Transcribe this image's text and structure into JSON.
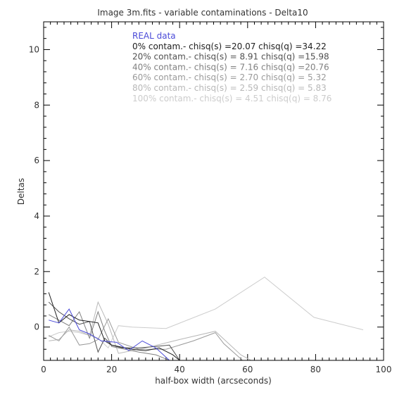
{
  "chart_data": {
    "type": "line",
    "title": "Image 3m.fits - variable contaminations - Delta10",
    "xlabel": "half-box width (arcseconds)",
    "ylabel": "Deltas",
    "xlim": [
      0,
      100
    ],
    "ylim": [
      -1.2,
      11
    ],
    "xticks": [
      0,
      20,
      40,
      60,
      80,
      100
    ],
    "yticks": [
      0,
      2,
      4,
      6,
      8,
      10
    ],
    "x_minor_step": 2,
    "y_minor_step": 0.4,
    "grid": false,
    "legend_position": "top",
    "series": [
      {
        "name": "REAL data",
        "legend_text": "REAL data",
        "color": "#4a4ad8",
        "x": [
          1.5,
          4.5,
          7.5,
          10.5,
          13.5,
          17,
          21.5,
          25,
          29,
          33,
          37
        ],
        "y": [
          0.25,
          0.15,
          0.65,
          -0.1,
          -0.25,
          -0.5,
          -0.55,
          -0.85,
          -0.5,
          -0.75,
          -1.2
        ]
      },
      {
        "name": "0% contam.",
        "legend_text": "0% contam.- chisq(s) =20.07 chisq(q) =34.22",
        "color": "#202020",
        "x": [
          1.5,
          4.5,
          7.5,
          10.5,
          13.5,
          16,
          18,
          20,
          22,
          26,
          30,
          34,
          38,
          40
        ],
        "y": [
          1.25,
          0.15,
          0.45,
          0.25,
          0.2,
          0.15,
          -0.5,
          -0.65,
          -0.7,
          -0.8,
          -0.85,
          -0.75,
          -1.0,
          -1.2
        ]
      },
      {
        "name": "20% contam.",
        "legend_text": "20% contam.- chisq(s) = 8.91 chisq(q) =15.98",
        "color": "#505050",
        "x": [
          1.5,
          4.5,
          7.5,
          10.5,
          13.5,
          16,
          18,
          20,
          23,
          28,
          33,
          37,
          40
        ],
        "y": [
          0.9,
          0.55,
          0.3,
          0.1,
          0.2,
          -0.9,
          -0.4,
          -0.65,
          -0.75,
          -0.75,
          -0.7,
          -0.65,
          -1.2
        ]
      },
      {
        "name": "40% contam.",
        "legend_text": "40% contam.- chisq(s) = 7.16 chisq(q) =20.76",
        "color": "#808080",
        "x": [
          1.5,
          4.5,
          7.5,
          10.5,
          13.5,
          16,
          18,
          20,
          24,
          28,
          33,
          37
        ],
        "y": [
          0.45,
          0.25,
          0.05,
          0.55,
          -0.4,
          0.55,
          -0.15,
          -0.7,
          -0.8,
          -0.9,
          -1.0,
          -1.2
        ]
      },
      {
        "name": "60% contam.",
        "legend_text": "60% contam.- chisq(s) = 2.70 chisq(q) = 5.32",
        "color": "#9a9a9a",
        "x": [
          1.5,
          4.5,
          7.5,
          10.5,
          13.5,
          16,
          19,
          22,
          28,
          36,
          44,
          50.5,
          53,
          58.5
        ],
        "y": [
          -0.3,
          -0.5,
          0.0,
          -0.65,
          -0.6,
          -0.45,
          0.3,
          -0.55,
          -0.8,
          -0.8,
          -0.5,
          -0.2,
          -0.6,
          -1.2
        ]
      },
      {
        "name": "80% contam.",
        "legend_text": "80% contam.- chisq(s) = 2.59 chisq(q) = 5.83",
        "color": "#b8b8b8",
        "x": [
          1.5,
          4.5,
          7.5,
          10.5,
          13.5,
          16,
          19,
          22,
          30,
          40,
          50.5,
          58,
          61
        ],
        "y": [
          -0.5,
          -0.45,
          -0.1,
          -0.15,
          -0.3,
          0.9,
          0.1,
          -0.95,
          -0.75,
          -0.45,
          -0.15,
          -1.0,
          -1.2
        ]
      },
      {
        "name": "100% contam.",
        "legend_text": "100% contam.- chisq(s) = 4.51 chisq(q) = 8.76",
        "color": "#cccccc",
        "x": [
          1.5,
          4.5,
          7.5,
          10.5,
          13.5,
          16,
          19,
          22,
          26,
          36,
          50.5,
          65,
          79.5,
          94
        ],
        "y": [
          -0.35,
          -0.2,
          -0.15,
          -0.2,
          -0.3,
          -0.4,
          -0.75,
          0.05,
          0.0,
          -0.05,
          0.65,
          1.8,
          0.35,
          -0.1
        ]
      }
    ]
  }
}
